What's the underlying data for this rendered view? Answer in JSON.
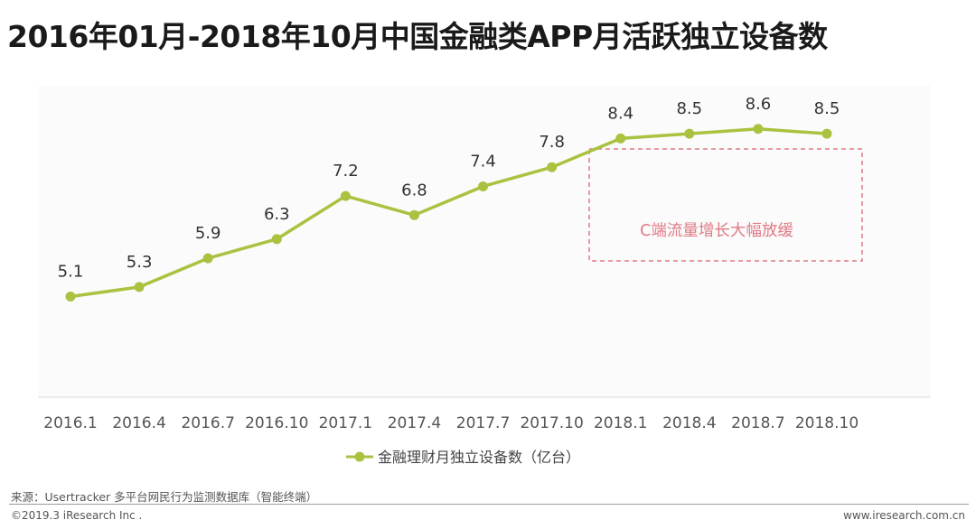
{
  "chart_data": {
    "type": "line",
    "title": "2016年01月-2018年10月中国金融类APP月活跃独立设备数",
    "categories": [
      "2016.1",
      "2016.4",
      "2016.7",
      "2016.10",
      "2017.1",
      "2017.4",
      "2017.7",
      "2017.10",
      "2018.1",
      "2018.4",
      "2018.7",
      "2018.10"
    ],
    "series": [
      {
        "name": "金融理财月独立设备数（亿台）",
        "values": [
          5.1,
          5.3,
          5.9,
          6.3,
          7.2,
          6.8,
          7.4,
          7.8,
          8.4,
          8.5,
          8.6,
          8.5
        ],
        "color": "#a9c23f"
      }
    ],
    "data_labels": [
      "5.1",
      "5.3",
      "5.9",
      "6.3",
      "7.2",
      "6.8",
      "7.4",
      "7.8",
      "8.4",
      "8.5",
      "8.6",
      "8.5"
    ],
    "annotation": {
      "text": "C端流量增长大幅放缓",
      "color": "#e07a84"
    },
    "xlabel": "",
    "ylabel": "",
    "ylim": [
      3.0,
      9.5
    ],
    "grid": false,
    "legend_position": "bottom"
  },
  "footer": {
    "source": "来源：Usertracker 多平台网民行为监测数据库（智能终端）",
    "copyright": "©2019.3 iResearch Inc .",
    "website": "www.iresearch.com.cn"
  }
}
